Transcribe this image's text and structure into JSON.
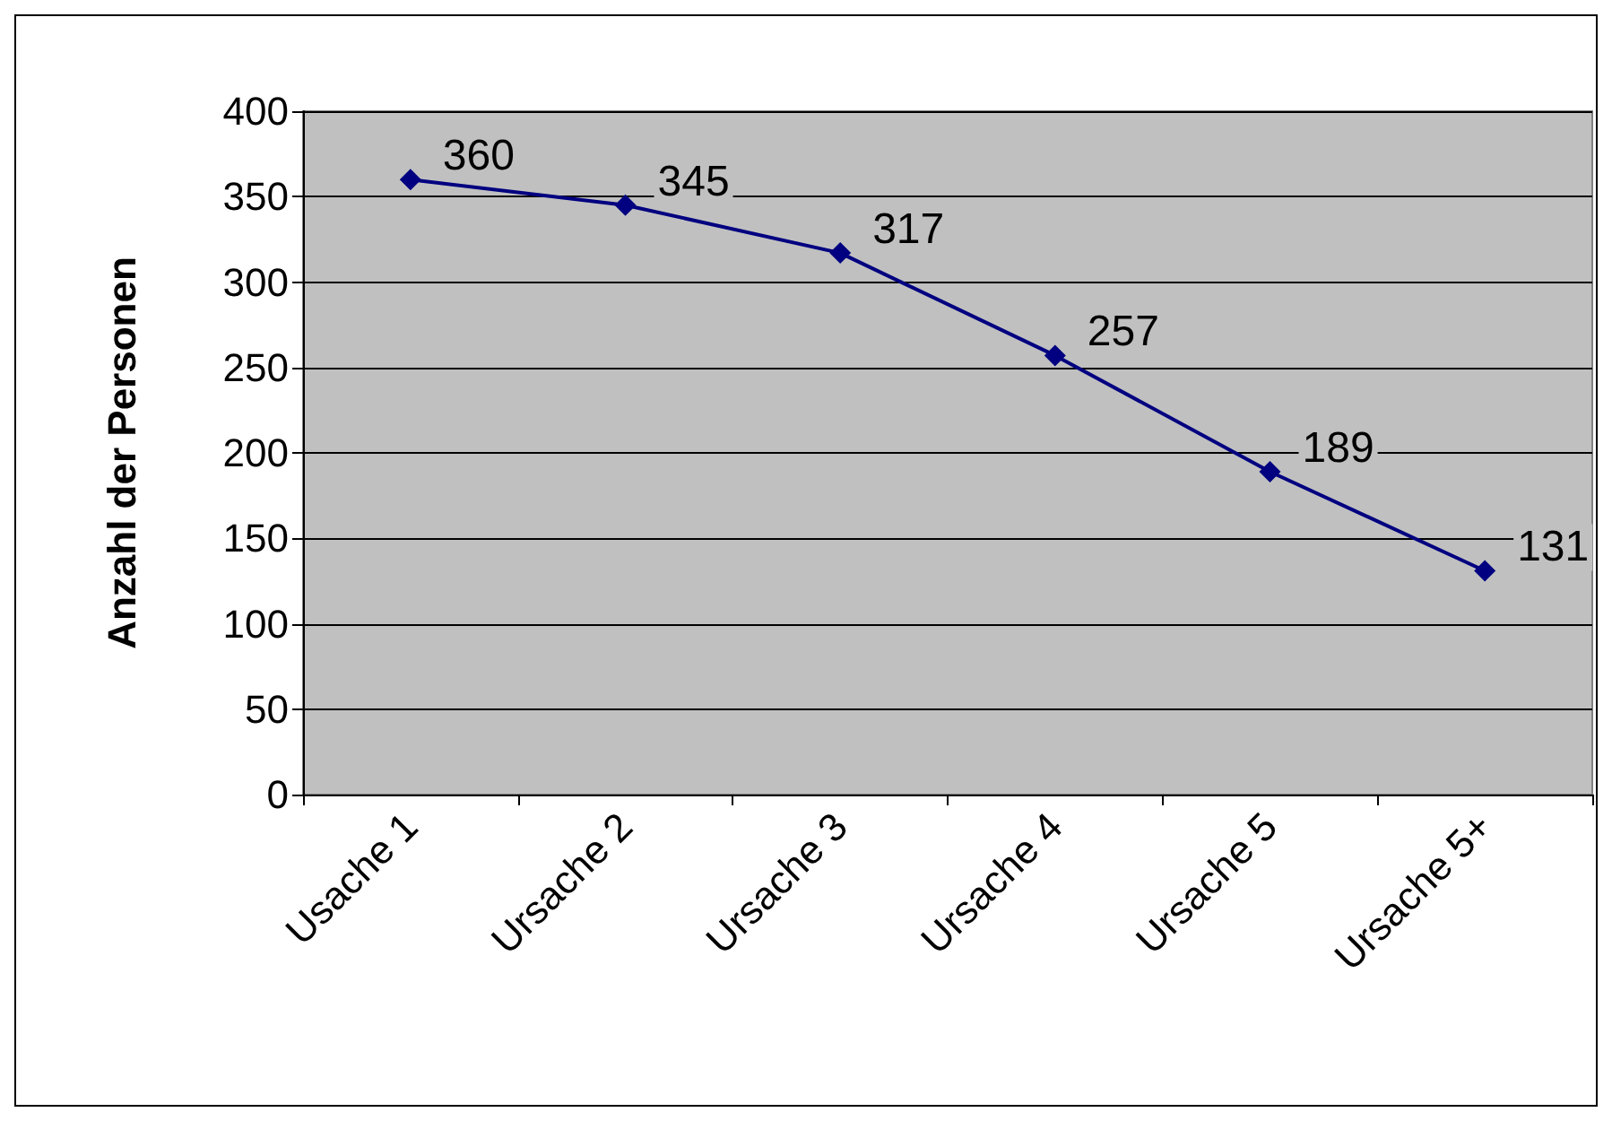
{
  "chart_data": {
    "type": "line",
    "ylabel": "Anzahl der Personen",
    "categories": [
      "Usache 1",
      "Ursache 2",
      "Ursache 3",
      "Ursache 4",
      "Ursache 5",
      "Ursache 5+"
    ],
    "values": [
      360,
      345,
      317,
      257,
      189,
      131
    ],
    "color": "#000080",
    "ylim": [
      0,
      400
    ],
    "yticks": [
      0,
      50,
      100,
      150,
      200,
      250,
      300,
      350,
      400
    ],
    "grid": "y",
    "marker": "diamond",
    "line_style": "solid",
    "data_labels": true
  }
}
